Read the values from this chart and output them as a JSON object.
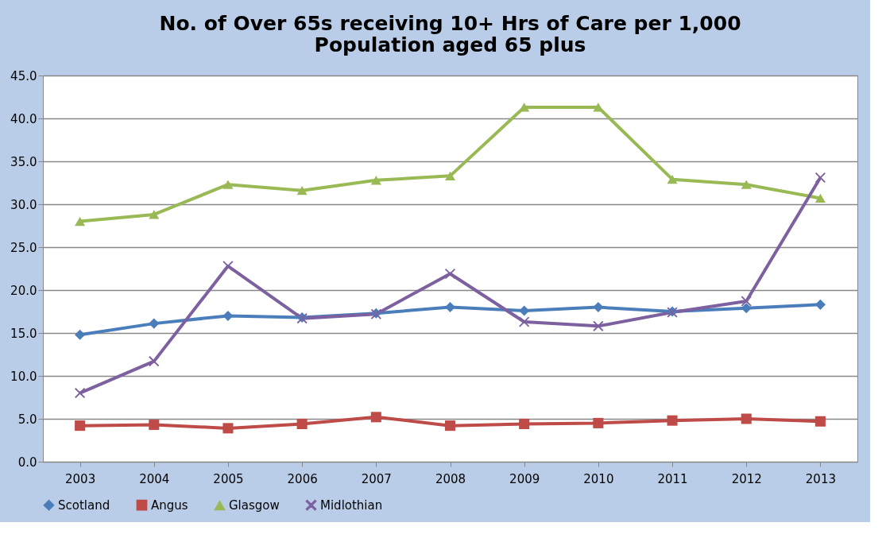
{
  "chart_data": {
    "type": "line",
    "title": "No. of Over 65s receiving 10+ Hrs of Care per  1,000\nPopulation aged 65 plus",
    "categories": [
      "2003",
      "2004",
      "2005",
      "2006",
      "2007",
      "2008",
      "2009",
      "2010",
      "2011",
      "2012",
      "2013"
    ],
    "series": [
      {
        "name": "Scotland",
        "color": "#4a7ebb",
        "marker": "diamond",
        "values": [
          14.8,
          16.1,
          17.0,
          16.8,
          17.3,
          18.0,
          17.6,
          18.0,
          17.5,
          17.9,
          18.3
        ]
      },
      {
        "name": "Angus",
        "color": "#be4b48",
        "marker": "square",
        "values": [
          4.2,
          4.3,
          3.9,
          4.4,
          5.2,
          4.2,
          4.4,
          4.5,
          4.8,
          5.0,
          4.7
        ]
      },
      {
        "name": "Glasgow",
        "color": "#98b954",
        "marker": "triangle",
        "values": [
          28.0,
          28.8,
          32.3,
          31.6,
          32.8,
          33.3,
          41.3,
          41.3,
          32.9,
          32.3,
          30.7
        ]
      },
      {
        "name": "Midlothian",
        "color": "#7d60a0",
        "marker": "cross",
        "values": [
          8.0,
          11.7,
          22.8,
          16.7,
          17.2,
          21.9,
          16.3,
          15.8,
          17.4,
          18.7,
          33.1
        ]
      }
    ],
    "ylim": [
      0,
      45
    ],
    "yticks": [
      {
        "value": 0,
        "label": "0.0"
      },
      {
        "value": 5,
        "label": "5.0"
      },
      {
        "value": 10,
        "label": "10.0"
      },
      {
        "value": 15,
        "label": "15.0"
      },
      {
        "value": 20,
        "label": "20.0"
      },
      {
        "value": 25,
        "label": "25.0"
      },
      {
        "value": 30,
        "label": "30.0"
      },
      {
        "value": 35,
        "label": "35.0"
      },
      {
        "value": 40,
        "label": "40.0"
      },
      {
        "value": 45,
        "label": "45.0"
      }
    ],
    "grid": "y",
    "legend": "bottom",
    "line_style": "solid"
  }
}
